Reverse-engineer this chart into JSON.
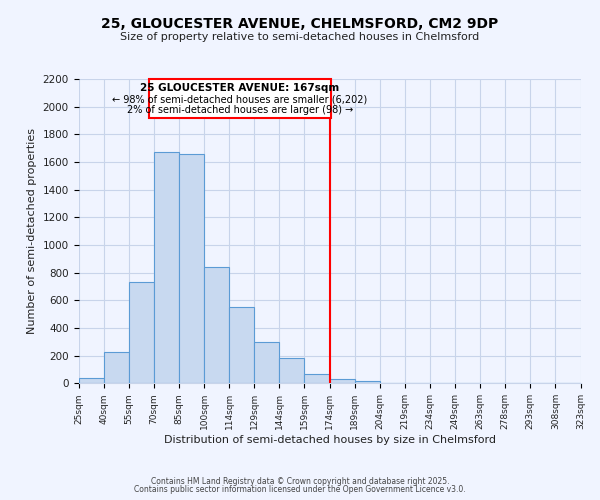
{
  "title": "25, GLOUCESTER AVENUE, CHELMSFORD, CM2 9DP",
  "subtitle": "Size of property relative to semi-detached houses in Chelmsford",
  "xlabel": "Distribution of semi-detached houses by size in Chelmsford",
  "ylabel": "Number of semi-detached properties",
  "bin_labels": [
    "25sqm",
    "40sqm",
    "55sqm",
    "70sqm",
    "85sqm",
    "100sqm",
    "114sqm",
    "129sqm",
    "144sqm",
    "159sqm",
    "174sqm",
    "189sqm",
    "204sqm",
    "219sqm",
    "234sqm",
    "249sqm",
    "263sqm",
    "278sqm",
    "293sqm",
    "308sqm",
    "323sqm"
  ],
  "bar_values": [
    40,
    225,
    730,
    1670,
    1655,
    840,
    555,
    300,
    180,
    70,
    30,
    15,
    5,
    0,
    0,
    0,
    0,
    0,
    0,
    0
  ],
  "bar_color": "#c8d9f0",
  "bar_edge_color": "#5b9bd5",
  "vline_color": "red",
  "annotation_title": "25 GLOUCESTER AVENUE: 167sqm",
  "annotation_line1": "← 98% of semi-detached houses are smaller (6,202)",
  "annotation_line2": "2% of semi-detached houses are larger (98) →",
  "annotation_box_color": "red",
  "ylim": [
    0,
    2200
  ],
  "yticks": [
    0,
    200,
    400,
    600,
    800,
    1000,
    1200,
    1400,
    1600,
    1800,
    2000,
    2200
  ],
  "footer1": "Contains HM Land Registry data © Crown copyright and database right 2025.",
  "footer2": "Contains public sector information licensed under the Open Government Licence v3.0.",
  "bg_color": "#f0f4ff",
  "grid_color": "#c8d4ea"
}
